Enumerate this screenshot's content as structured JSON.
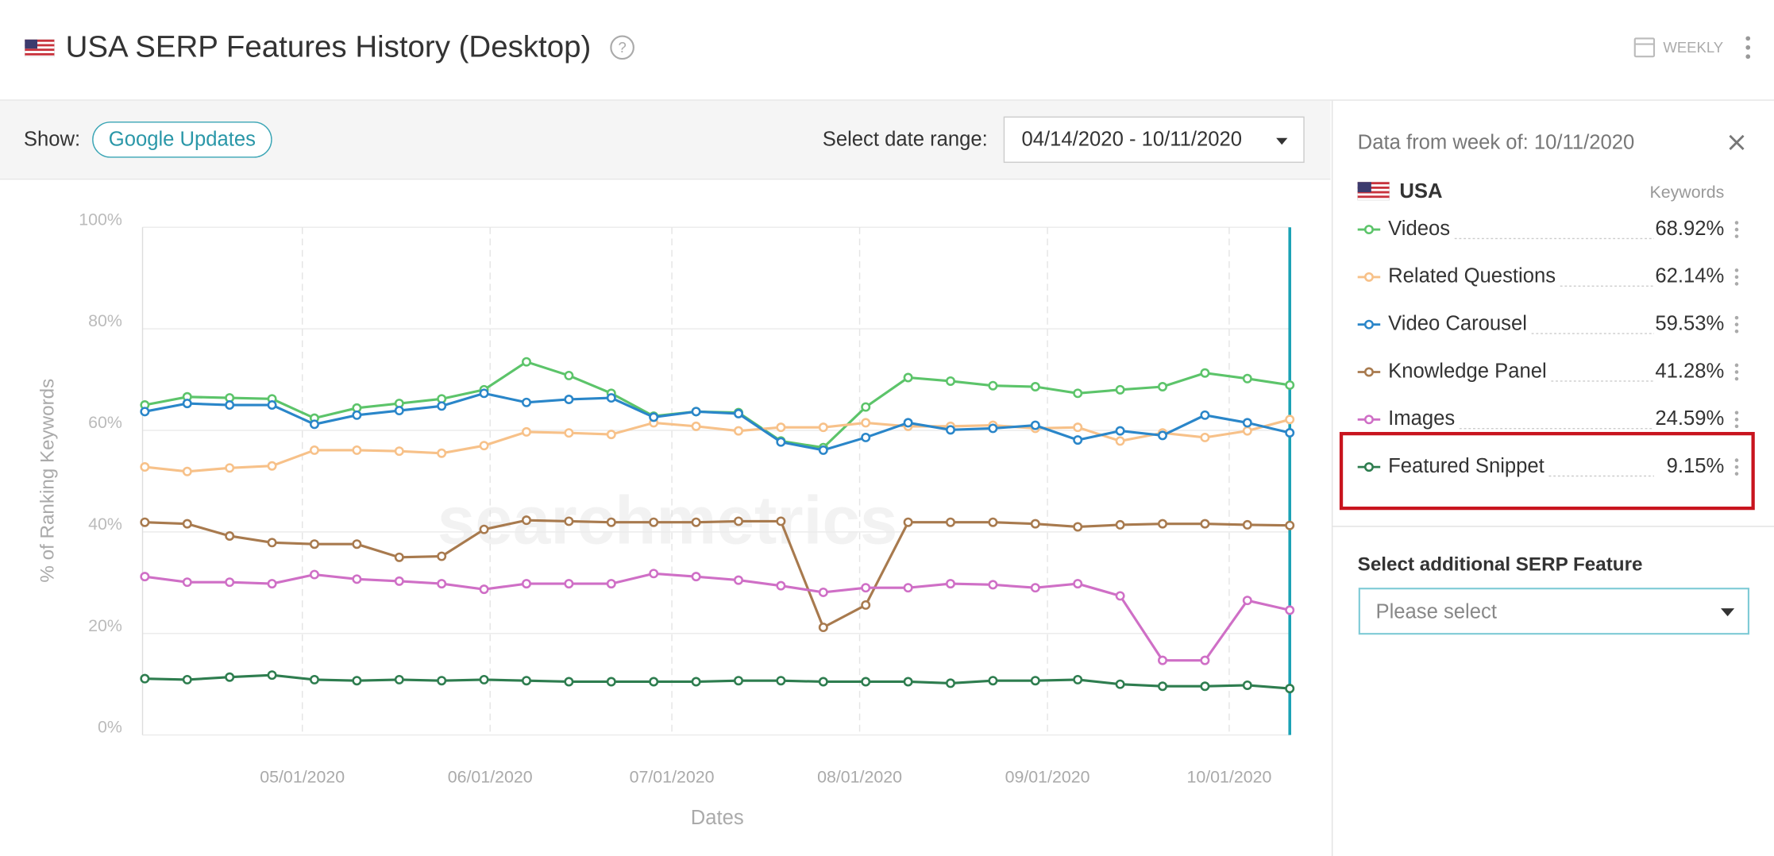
{
  "header": {
    "title": "USA SERP Features History (Desktop)",
    "help": "?",
    "interval": "WEEKLY"
  },
  "toolbar": {
    "show_label": "Show:",
    "updates_button": "Google Updates",
    "range_label": "Select date range:",
    "range_value": "04/14/2020 - 10/11/2020"
  },
  "chart_data": {
    "type": "line",
    "x_label": "Dates",
    "y_label": "% of Ranking Keywords",
    "watermark": "searchmetrics",
    "x": [
      "04/05/2020",
      "04/12/2020",
      "04/19/2020",
      "04/26/2020",
      "05/03/2020",
      "05/10/2020",
      "05/17/2020",
      "05/24/2020",
      "05/31/2020",
      "06/07/2020",
      "06/14/2020",
      "06/21/2020",
      "06/28/2020",
      "07/05/2020",
      "07/12/2020",
      "07/19/2020",
      "07/26/2020",
      "08/02/2020",
      "08/09/2020",
      "08/16/2020",
      "08/23/2020",
      "08/30/2020",
      "09/06/2020",
      "09/13/2020",
      "09/20/2020",
      "09/27/2020",
      "10/04/2020",
      "10/11/2020"
    ],
    "xlim": [
      "04/05/2020",
      "10/11/2020"
    ],
    "xticks": [
      "05/01/2020",
      "06/01/2020",
      "07/01/2020",
      "08/01/2020",
      "09/01/2020",
      "10/01/2020"
    ],
    "selected_x": "10/11/2020",
    "ylim": [
      0,
      100
    ],
    "yticks": [
      {
        "value": 0,
        "label": "0%"
      },
      {
        "value": 20,
        "label": "20%"
      },
      {
        "value": 40,
        "label": "40%"
      },
      {
        "value": 60,
        "label": "60%"
      },
      {
        "value": 80,
        "label": "80%"
      },
      {
        "value": 100,
        "label": "100%"
      }
    ],
    "grid": true,
    "series": [
      {
        "name": "Videos",
        "color": "#5cc46a",
        "values": [
          65.0,
          66.6,
          66.4,
          66.2,
          62.4,
          64.4,
          65.3,
          66.2,
          68.0,
          73.5,
          70.8,
          67.3,
          62.8,
          63.7,
          63.5,
          57.9,
          56.6,
          64.6,
          70.4,
          69.7,
          68.8,
          68.6,
          67.3,
          68.0,
          68.6,
          71.3,
          70.2,
          68.92
        ]
      },
      {
        "name": "Related Questions",
        "color": "#f7c189",
        "values": [
          52.8,
          51.9,
          52.6,
          53.0,
          56.1,
          56.1,
          55.9,
          55.5,
          57.0,
          59.7,
          59.5,
          59.2,
          61.5,
          60.8,
          59.9,
          60.6,
          60.6,
          61.5,
          60.8,
          60.8,
          61.0,
          60.4,
          60.6,
          57.9,
          59.5,
          58.6,
          59.9,
          62.14
        ]
      },
      {
        "name": "Video Carousel",
        "color": "#2a86c9",
        "values": [
          63.7,
          65.3,
          65.0,
          65.0,
          61.2,
          63.0,
          63.9,
          64.8,
          67.3,
          65.5,
          66.1,
          66.4,
          62.6,
          63.7,
          63.3,
          57.7,
          56.1,
          58.6,
          61.5,
          60.1,
          60.4,
          61.0,
          58.1,
          59.9,
          59.0,
          63.0,
          61.5,
          59.53
        ]
      },
      {
        "name": "Knowledge Panel",
        "color": "#a87a4e",
        "values": [
          41.9,
          41.6,
          39.2,
          37.9,
          37.6,
          37.6,
          35.0,
          35.2,
          40.5,
          42.3,
          42.1,
          41.9,
          41.9,
          41.9,
          42.1,
          42.1,
          21.2,
          25.6,
          41.9,
          41.9,
          41.9,
          41.6,
          41.0,
          41.4,
          41.6,
          41.6,
          41.4,
          41.28
        ]
      },
      {
        "name": "Images",
        "color": "#cf6fc6",
        "values": [
          31.2,
          30.1,
          30.1,
          29.8,
          31.6,
          30.7,
          30.3,
          29.8,
          28.7,
          29.8,
          29.8,
          29.8,
          31.8,
          31.2,
          30.5,
          29.4,
          28.1,
          29.0,
          29.0,
          29.8,
          29.6,
          29.0,
          29.8,
          27.4,
          14.7,
          14.7,
          26.5,
          24.59
        ]
      },
      {
        "name": "Featured Snippet",
        "color": "#2e7d4f",
        "values": [
          11.1,
          10.9,
          11.4,
          11.8,
          10.9,
          10.7,
          10.9,
          10.7,
          10.9,
          10.7,
          10.5,
          10.5,
          10.5,
          10.5,
          10.7,
          10.7,
          10.5,
          10.5,
          10.5,
          10.2,
          10.7,
          10.7,
          10.9,
          10.0,
          9.6,
          9.6,
          9.8,
          9.15
        ]
      }
    ]
  },
  "panel": {
    "heading": "Data from week of: 10/11/2020",
    "country": "USA",
    "column": "Keywords",
    "values": [
      "68.92%",
      "62.14%",
      "59.53%",
      "41.28%",
      "24.59%",
      "9.15%"
    ],
    "select_label": "Select additional SERP Feature",
    "select_placeholder": "Please select"
  }
}
